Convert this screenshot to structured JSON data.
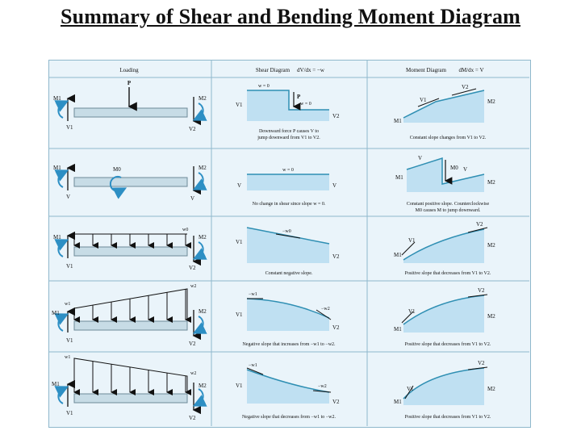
{
  "title": "Summary of Shear and Bending Moment Diagram",
  "headers": {
    "loading": "Loading",
    "shear": "Shear Diagram",
    "shear_eq": "dV/dx = −w",
    "moment": "Moment Diagram",
    "moment_eq": "dM/dx = V"
  },
  "rows": [
    {
      "loading_labels": {
        "force": "P",
        "m1": "M1",
        "m2": "M2",
        "v1": "V1",
        "v2": "V2"
      },
      "shear_labels": {
        "w_left": "w = 0",
        "w_right": "w = 0",
        "p": "P",
        "v1": "V1",
        "v2": "V2"
      },
      "shear_caption": [
        "Downward force P causes V to",
        "jump downward from V1 to V2."
      ],
      "moment_labels": {
        "v1": "V1",
        "v2": "V2",
        "m1": "M1",
        "m2": "M2"
      },
      "moment_caption": [
        "Constant slope changes from V1 to V2."
      ]
    },
    {
      "loading_labels": {
        "m0": "M0",
        "m1": "M1",
        "m2": "M2",
        "v_left": "V",
        "v_right": "V"
      },
      "shear_labels": {
        "w": "w = 0",
        "v_left": "V",
        "v_right": "V"
      },
      "shear_caption": [
        "No change in shear since slope w = 0."
      ],
      "moment_labels": {
        "v_a": "V",
        "v_b": "V",
        "m0": "M0",
        "m1": "M1",
        "m2": "M2"
      },
      "moment_caption": [
        "Constant positive slope. Counterclockwise",
        "M0 causes M to jump downward."
      ]
    },
    {
      "loading_labels": {
        "w0": "w0",
        "m1": "M1",
        "m2": "M2",
        "v1": "V1",
        "v2": "V2"
      },
      "shear_labels": {
        "w0": "−w0",
        "v1": "V1",
        "v2": "V2"
      },
      "shear_caption": [
        "Constant negative slope."
      ],
      "moment_labels": {
        "v1": "V1",
        "v2": "V2",
        "m1": "M1",
        "m2": "M2"
      },
      "moment_caption": [
        "Positive slope that decreases from V1 to V2."
      ]
    },
    {
      "loading_labels": {
        "w1": "w1",
        "w2": "w2",
        "m1": "M1",
        "m2": "M2",
        "v1": "V1",
        "v2": "V2"
      },
      "shear_labels": {
        "w1": "−w1",
        "w2": "−w2",
        "v1": "V1",
        "v2": "V2"
      },
      "shear_caption": [
        "Negative slope that increases from −w1 to −w2."
      ],
      "moment_labels": {
        "v1": "V1",
        "v2": "V2",
        "m1": "M1",
        "m2": "M2"
      },
      "moment_caption": [
        "Positive slope that decreases from V1 to V2."
      ]
    },
    {
      "loading_labels": {
        "w1": "w1",
        "w2": "w2",
        "m1": "M1",
        "m2": "M2",
        "v1": "V1",
        "v2": "V2"
      },
      "shear_labels": {
        "w1": "−w1",
        "w2": "−w2",
        "v1": "V1",
        "v2": "V2"
      },
      "shear_caption": [
        "Negative slope that decreases from −w1 to −w2."
      ],
      "moment_labels": {
        "v1": "V1",
        "v2": "V2",
        "m1": "M1",
        "m2": "M2"
      },
      "moment_caption": [
        "Positive slope that decreases from V1 to V2."
      ]
    }
  ],
  "colors": {
    "cell_bg": "#eaf4fa",
    "grid": "#8fb8cc",
    "fill": "#bfe0f2",
    "line": "#2f8fb3",
    "ink": "#111111",
    "moment_arrow": "#2d8fc4"
  }
}
